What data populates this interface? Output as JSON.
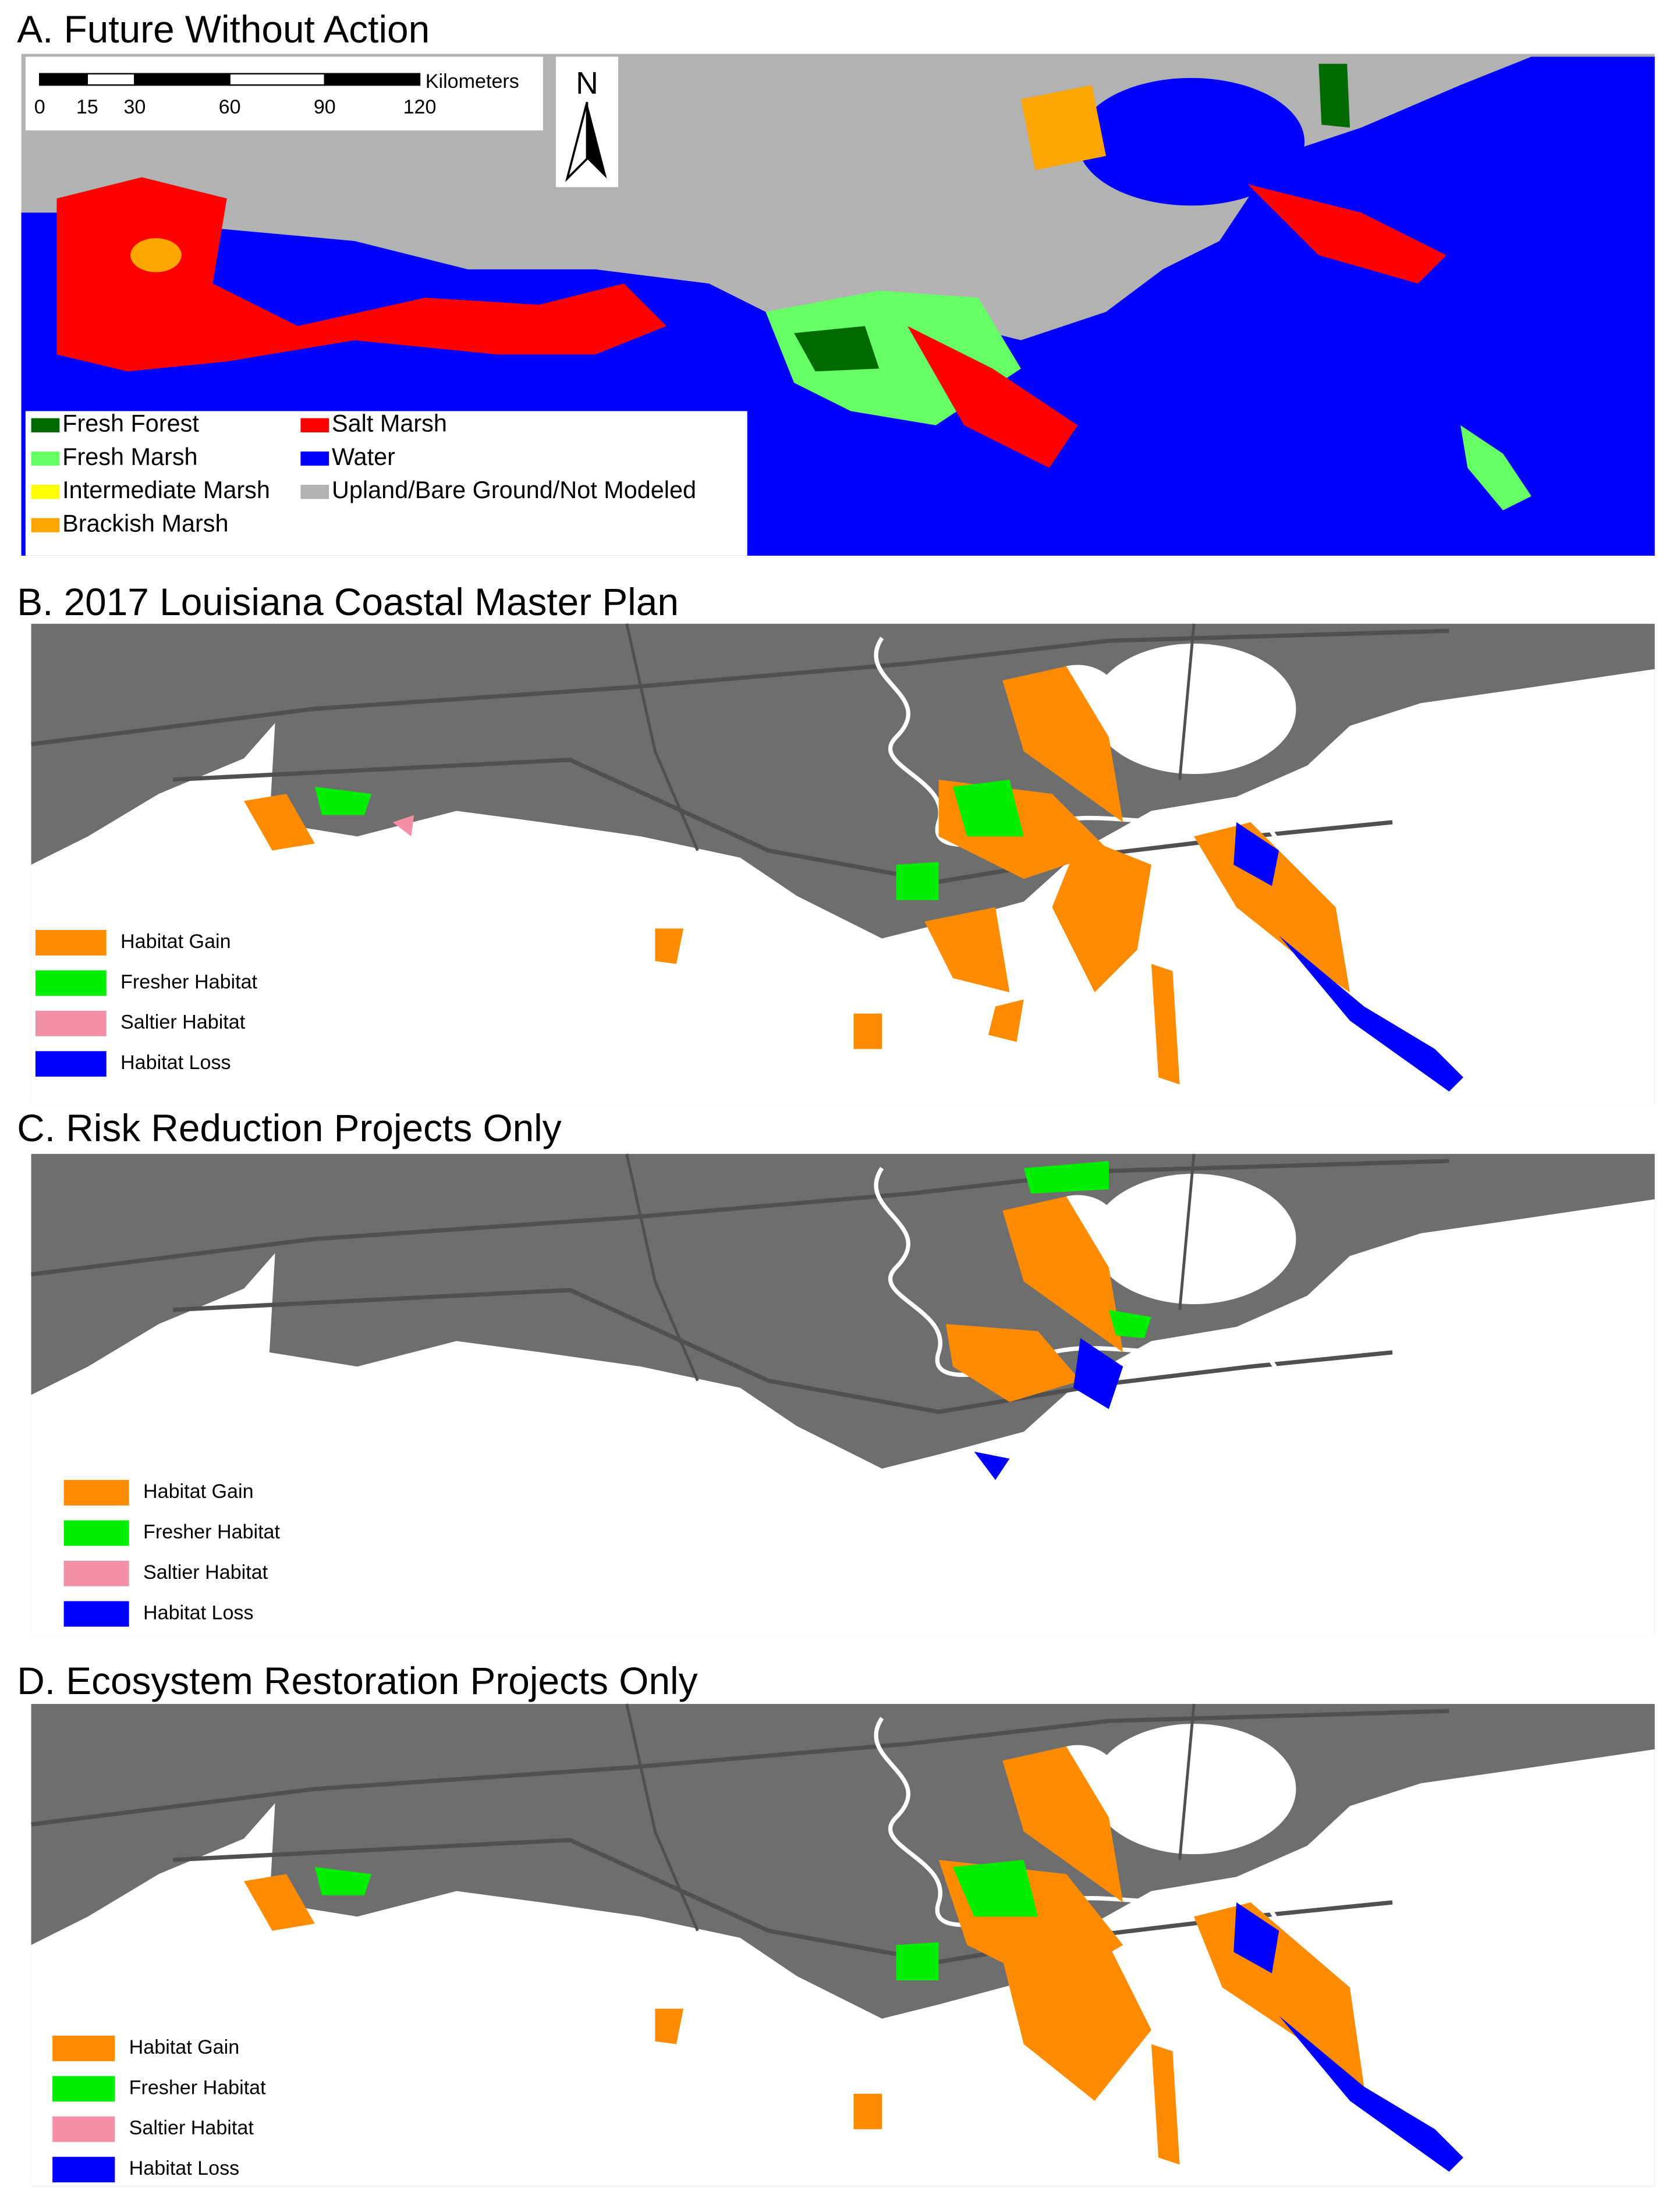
{
  "panels": [
    {
      "title": "A. Future Without Action",
      "legend": [
        {
          "label": "Fresh Forest",
          "color": "#006a00"
        },
        {
          "label": "Fresh Marsh",
          "color": "#66ff66"
        },
        {
          "label": "Intermediate Marsh",
          "color": "#ffff00"
        },
        {
          "label": "Brackish Marsh",
          "color": "#ffa500"
        },
        {
          "label": "Salt Marsh",
          "color": "#ff0000"
        },
        {
          "label": "Water",
          "color": "#0000ff"
        },
        {
          "label": "Upland/Bare Ground/Not Modeled",
          "color": "#b2b2b2"
        }
      ],
      "scale_bar": {
        "ticks": [
          0,
          15,
          30,
          60,
          90,
          120
        ],
        "unit": "Kilometers"
      },
      "north": "N"
    },
    {
      "title": "B. 2017 Louisiana Coastal Master Plan",
      "legend": [
        {
          "label": "Habitat Gain",
          "color": "#ff8c00"
        },
        {
          "label": "Fresher Habitat",
          "color": "#00ee00"
        },
        {
          "label": "Saltier Habitat",
          "color": "#f48fa8"
        },
        {
          "label": "Habitat Loss",
          "color": "#0000ff"
        }
      ]
    },
    {
      "title": "C. Risk Reduction Projects Only",
      "legend": [
        {
          "label": "Habitat Gain",
          "color": "#ff8c00"
        },
        {
          "label": "Fresher Habitat",
          "color": "#00ee00"
        },
        {
          "label": "Saltier Habitat",
          "color": "#f48fa8"
        },
        {
          "label": "Habitat Loss",
          "color": "#0000ff"
        }
      ]
    },
    {
      "title": "D. Ecosystem Restoration Projects Only",
      "legend": [
        {
          "label": "Habitat Gain",
          "color": "#ff8c00"
        },
        {
          "label": "Fresher Habitat",
          "color": "#00ee00"
        },
        {
          "label": "Saltier Habitat",
          "color": "#f48fa8"
        },
        {
          "label": "Habitat Loss",
          "color": "#0000ff"
        }
      ]
    }
  ]
}
